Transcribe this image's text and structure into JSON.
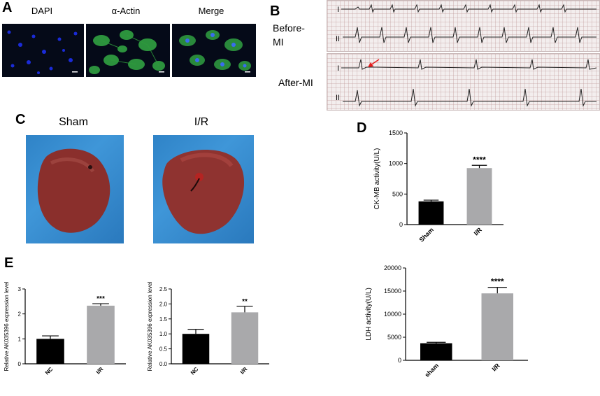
{
  "panels": {
    "a": {
      "letter": "A",
      "labels": [
        "DAPI",
        "α-Actin",
        "Merge"
      ]
    },
    "b": {
      "letter": "B",
      "before_label": "Before-\nMI",
      "after_label": "After-MI",
      "lead_labels": [
        "I",
        "II",
        "I",
        "II"
      ]
    },
    "c": {
      "letter": "C",
      "labels": [
        "Sham",
        "I/R"
      ]
    },
    "d": {
      "letter": "D"
    },
    "e": {
      "letter": "E"
    }
  },
  "colors": {
    "bar_control": "#000000",
    "bar_ir": "#a9a9ab",
    "dapi": "#1a2bd8",
    "actin": "#39c04a",
    "tissue_blue": "#3a8fd3",
    "heart": "#8a2f2c",
    "arrow": "#e41b1b"
  },
  "chart_data": [
    {
      "id": "ck-mb",
      "type": "bar",
      "categories": [
        "Sham",
        "I/R"
      ],
      "values": [
        380,
        925
      ],
      "errors": [
        20,
        45
      ],
      "significance": [
        "",
        "****"
      ],
      "ylabel": "CK-MB activity(U/L)",
      "xlabel": "",
      "ylim": [
        0,
        1500
      ],
      "yticks": [
        "0",
        "500",
        "1000",
        "1500"
      ]
    },
    {
      "id": "ldh",
      "type": "bar",
      "categories": [
        "sham",
        "I/R"
      ],
      "values": [
        3700,
        14500
      ],
      "errors": [
        200,
        1300
      ],
      "significance": [
        "",
        "****"
      ],
      "ylabel": "LDH activity(U/L)",
      "xlabel": "",
      "ylim": [
        0,
        20000
      ],
      "yticks": [
        "0",
        "5000",
        "10000",
        "15000",
        "20000"
      ]
    },
    {
      "id": "ak-1",
      "type": "bar",
      "categories": [
        "NC",
        "I/R"
      ],
      "values": [
        1.0,
        2.33
      ],
      "errors": [
        0.12,
        0.08
      ],
      "significance": [
        "",
        "***"
      ],
      "ylabel": "Relative AK035396 expression level",
      "xlabel": "",
      "ylim": [
        0,
        3
      ],
      "yticks": [
        "0",
        "1",
        "2",
        "3"
      ]
    },
    {
      "id": "ak-2",
      "type": "bar",
      "categories": [
        "NC",
        "I/R"
      ],
      "values": [
        1.0,
        1.72
      ],
      "errors": [
        0.15,
        0.2
      ],
      "significance": [
        "",
        "**"
      ],
      "ylabel": "Relative AK035396 expression level",
      "xlabel": "",
      "ylim": [
        0,
        2.5
      ],
      "yticks": [
        "0.0",
        "0.5",
        "1.0",
        "1.5",
        "2.0",
        "2.5"
      ]
    }
  ]
}
